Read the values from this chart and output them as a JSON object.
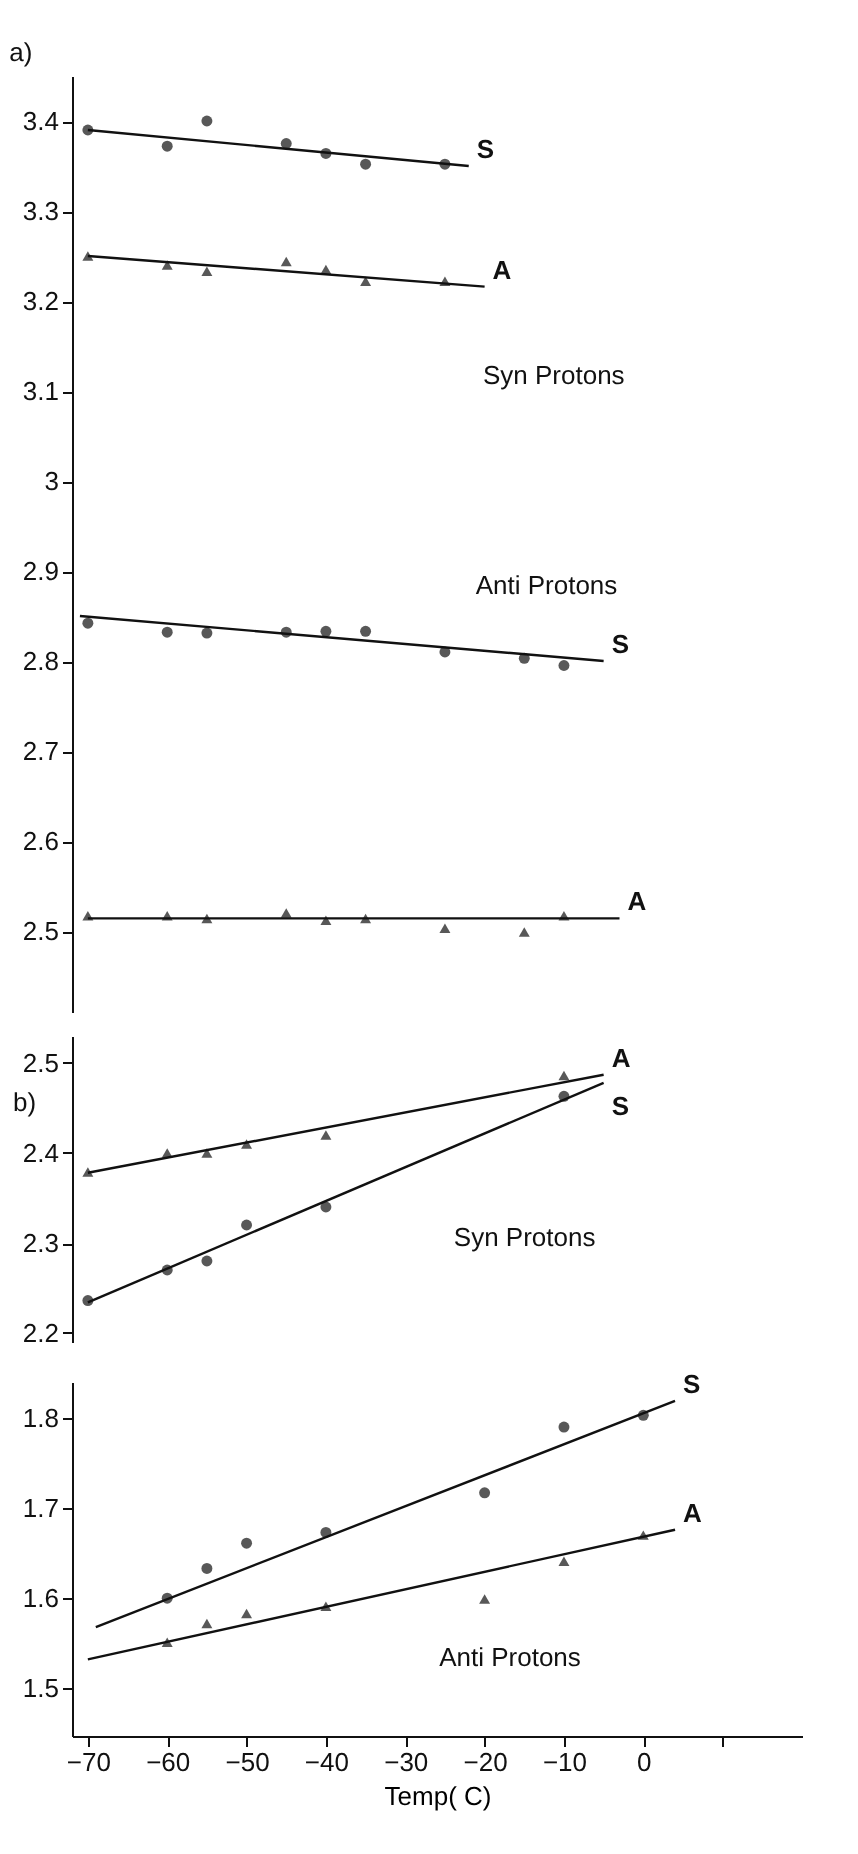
{
  "chart_data": [
    {
      "type": "scatter",
      "xticks": [
        -70,
        -60,
        -50,
        -40,
        -30,
        -20,
        -10,
        0
      ],
      "ylim": [
        2.41,
        3.45
      ],
      "yticks": [
        2.5,
        2.6,
        2.7,
        2.8,
        2.9,
        {
          "value": 3,
          "label": "3"
        },
        3.1,
        3.2,
        3.3,
        3.4
      ],
      "tick_labels": "y",
      "series": [
        {
          "type": "scatter",
          "marker": "circle",
          "color": "#111111",
          "x": [
            -70,
            -60,
            -55,
            -45,
            -40,
            -35,
            -25
          ],
          "values": [
            3.39,
            3.372,
            3.4,
            3.375,
            3.364,
            3.352,
            3.352
          ]
        },
        {
          "type": "line",
          "name": "S",
          "marker": "none",
          "color": "#111111",
          "x": [
            -70,
            -22
          ],
          "values": [
            3.39,
            3.35
          ]
        },
        {
          "type": "scatter",
          "marker": "triangle",
          "color": "#111111",
          "x": [
            -70,
            -60,
            -55,
            -45,
            -40,
            -35,
            -25
          ],
          "values": [
            3.25,
            3.24,
            3.233,
            3.244,
            3.235,
            3.222,
            3.222
          ]
        },
        {
          "type": "line",
          "name": "A",
          "marker": "none",
          "color": "#111111",
          "x": [
            -70,
            -20
          ],
          "values": [
            3.25,
            3.216
          ]
        },
        {
          "type": "scatter",
          "marker": "circle",
          "color": "#111111",
          "x": [
            -70,
            -60,
            -55,
            -45,
            -40,
            -35,
            -25,
            -15,
            -10
          ],
          "values": [
            2.842,
            2.832,
            2.831,
            2.832,
            2.833,
            2.833,
            2.81,
            2.803,
            2.795
          ]
        },
        {
          "type": "line",
          "name": "S",
          "marker": "none",
          "color": "#111111",
          "x": [
            -71,
            -5
          ],
          "values": [
            2.85,
            2.8
          ]
        },
        {
          "type": "scatter",
          "marker": "triangle",
          "color": "#111111",
          "x": [
            -70,
            -60,
            -55,
            -45,
            -40,
            -35,
            -25,
            -15,
            -10
          ],
          "values": [
            2.517,
            2.517,
            2.514,
            2.52,
            2.512,
            2.514,
            2.503,
            2.499,
            2.517
          ]
        },
        {
          "type": "line",
          "name": "A",
          "marker": "none",
          "color": "#111111",
          "x": [
            -70,
            -3
          ],
          "values": [
            2.514,
            2.514
          ]
        }
      ],
      "annotations": [
        "a)",
        "Syn Protons",
        "Anti Protons"
      ]
    },
    {
      "type": "scatter",
      "xticks": [
        -70,
        -60,
        -50,
        -40,
        -30,
        -20,
        -10,
        0
      ],
      "ylim": [
        2.19,
        2.53
      ],
      "yticks": [
        2.2,
        2.3,
        2.4,
        2.5
      ],
      "tick_labels": "y",
      "series": [
        {
          "type": "scatter",
          "marker": "triangle",
          "color": "#111111",
          "x": [
            -70,
            -60,
            -55,
            -50,
            -40,
            -10
          ],
          "values": [
            2.379,
            2.4,
            2.4,
            2.41,
            2.42,
            2.486
          ]
        },
        {
          "type": "line",
          "name": "A",
          "marker": "none",
          "color": "#111111",
          "x": [
            -70,
            -5
          ],
          "values": [
            2.378,
            2.487
          ]
        },
        {
          "type": "scatter",
          "marker": "circle",
          "color": "#111111",
          "x": [
            -70,
            -60,
            -55,
            -50,
            -40,
            -10
          ],
          "values": [
            2.236,
            2.27,
            2.28,
            2.32,
            2.34,
            2.463
          ]
        },
        {
          "type": "line",
          "name": "S",
          "marker": "none",
          "color": "#111111",
          "x": [
            -70,
            -5
          ],
          "values": [
            2.234,
            2.478
          ]
        }
      ],
      "annotations": [
        "b)",
        "Syn Protons"
      ]
    },
    {
      "type": "scatter",
      "xlabel": "Temp( C)",
      "xlim": [
        -72,
        20
      ],
      "xticks": [
        -70,
        -60,
        -50,
        -40,
        -30,
        -20,
        -10,
        0,
        {
          "value": 10,
          "label": null
        }
      ],
      "ylim": [
        1.447,
        1.84
      ],
      "yticks": [
        1.5,
        1.6,
        1.7,
        1.8
      ],
      "series": [
        {
          "type": "scatter",
          "marker": "circle",
          "color": "#111111",
          "x": [
            -60,
            -55,
            -50,
            -40,
            -20,
            -10,
            0
          ],
          "values": [
            1.6,
            1.633,
            1.661,
            1.673,
            1.717,
            1.79,
            1.803
          ]
        },
        {
          "type": "line",
          "name": "S",
          "marker": "none",
          "color": "#111111",
          "x": [
            -69,
            4
          ],
          "values": [
            1.568,
            1.819
          ]
        },
        {
          "type": "scatter",
          "marker": "triangle",
          "color": "#111111",
          "x": [
            -60,
            -55,
            -50,
            -40,
            -20,
            -10,
            0
          ],
          "values": [
            1.551,
            1.572,
            1.583,
            1.591,
            1.599,
            1.641,
            1.67
          ]
        },
        {
          "type": "line",
          "name": "A",
          "marker": "none",
          "color": "#111111",
          "x": [
            -70,
            4
          ],
          "values": [
            1.532,
            1.676
          ]
        }
      ],
      "annotations": [
        "Anti Protons"
      ]
    }
  ]
}
